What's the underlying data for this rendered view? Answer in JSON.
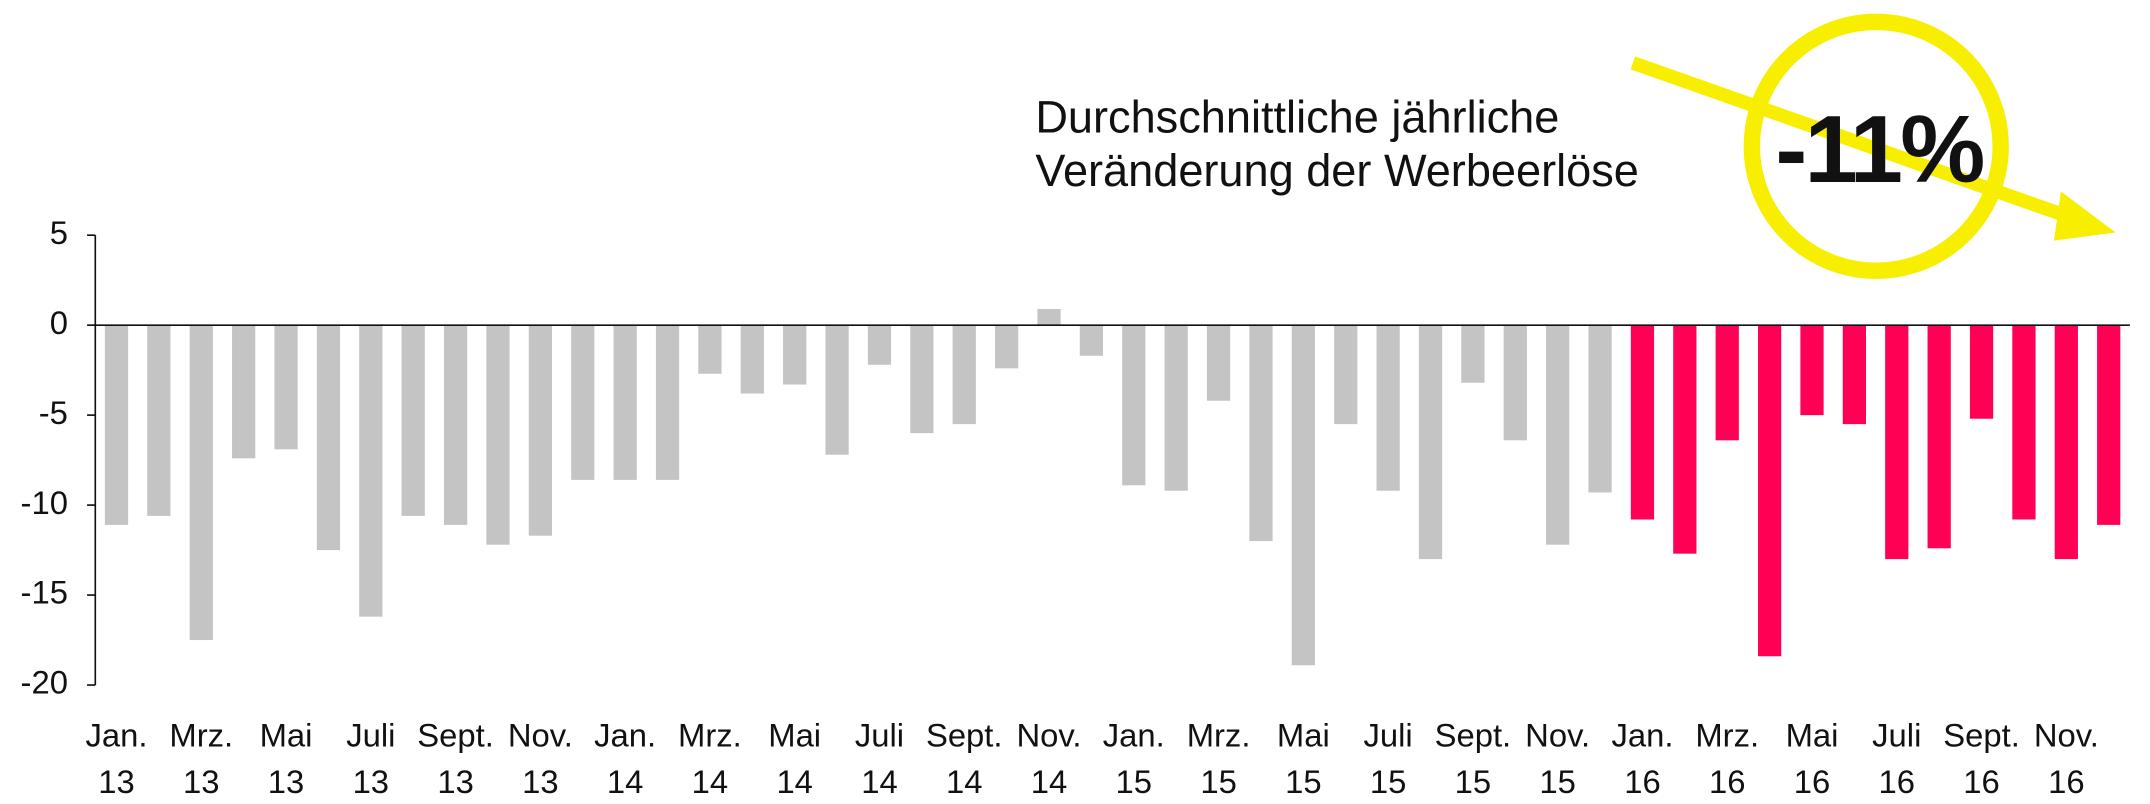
{
  "chart_data": {
    "type": "bar",
    "annotation": {
      "lines": [
        "Durchschnittliche jährliche",
        "Veränderung der Werbeerlöse"
      ],
      "highlight": "-11%"
    },
    "categories": [
      [
        "Jan.",
        "13"
      ],
      null,
      [
        "Mrz.",
        "13"
      ],
      null,
      [
        "Mai",
        "13"
      ],
      null,
      [
        "Juli",
        "13"
      ],
      null,
      [
        "Sept.",
        "13"
      ],
      null,
      [
        "Nov.",
        "13"
      ],
      null,
      [
        "Jan.",
        "14"
      ],
      null,
      [
        "Mrz.",
        "14"
      ],
      null,
      [
        "Mai",
        "14"
      ],
      null,
      [
        "Juli",
        "14"
      ],
      null,
      [
        "Sept.",
        "14"
      ],
      null,
      [
        "Nov.",
        "14"
      ],
      null,
      [
        "Jan.",
        "15"
      ],
      null,
      [
        "Mrz.",
        "15"
      ],
      null,
      [
        "Mai",
        "15"
      ],
      null,
      [
        "Juli",
        "15"
      ],
      null,
      [
        "Sept.",
        "15"
      ],
      null,
      [
        "Nov.",
        "15"
      ],
      null,
      [
        "Jan.",
        "16"
      ],
      null,
      [
        "Mrz.",
        "16"
      ],
      null,
      [
        "Mai",
        "16"
      ],
      null,
      [
        "Juli",
        "16"
      ],
      null,
      [
        "Sept.",
        "16"
      ],
      null,
      [
        "Nov.",
        "16"
      ],
      null
    ],
    "values": [
      -11.1,
      -10.6,
      -17.5,
      -7.4,
      -6.9,
      -12.5,
      -16.2,
      -10.6,
      -11.1,
      -12.2,
      -11.7,
      -8.6,
      -8.6,
      -8.6,
      -2.7,
      -3.8,
      -3.3,
      -7.2,
      -2.2,
      -6.0,
      -5.5,
      -2.4,
      0.9,
      -1.7,
      -8.9,
      -9.2,
      -4.2,
      -12.0,
      -18.9,
      -5.5,
      -9.2,
      -13.0,
      -3.2,
      -6.4,
      -12.2,
      -9.3,
      -10.8,
      -12.7,
      -6.4,
      -18.4,
      -5.0,
      -5.5,
      -13.0,
      -12.4,
      -5.2,
      -10.8,
      -13.0,
      -11.1
    ],
    "colors": [
      "#c4c4c4",
      "#c4c4c4",
      "#c4c4c4",
      "#c4c4c4",
      "#c4c4c4",
      "#c4c4c4",
      "#c4c4c4",
      "#c4c4c4",
      "#c4c4c4",
      "#c4c4c4",
      "#c4c4c4",
      "#c4c4c4",
      "#c4c4c4",
      "#c4c4c4",
      "#c4c4c4",
      "#c4c4c4",
      "#c4c4c4",
      "#c4c4c4",
      "#c4c4c4",
      "#c4c4c4",
      "#c4c4c4",
      "#c4c4c4",
      "#c4c4c4",
      "#c4c4c4",
      "#c4c4c4",
      "#c4c4c4",
      "#c4c4c4",
      "#c4c4c4",
      "#c4c4c4",
      "#c4c4c4",
      "#c4c4c4",
      "#c4c4c4",
      "#c4c4c4",
      "#c4c4c4",
      "#c4c4c4",
      "#c4c4c4",
      "#ff0055",
      "#ff0055",
      "#ff0055",
      "#ff0055",
      "#ff0055",
      "#ff0055",
      "#ff0055",
      "#ff0055",
      "#ff0055",
      "#ff0055",
      "#ff0055",
      "#ff0055"
    ],
    "ylim": [
      -20,
      5
    ],
    "yticks": [
      5,
      0,
      -5,
      -10,
      -15,
      -20
    ],
    "grid": false
  }
}
